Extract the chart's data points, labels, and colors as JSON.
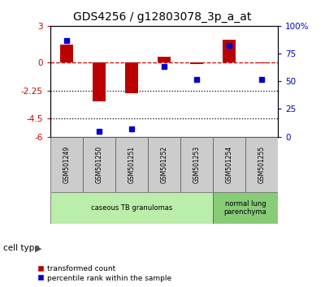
{
  "title": "GDS4256 / g12803078_3p_a_at",
  "samples": [
    "GSM501249",
    "GSM501250",
    "GSM501251",
    "GSM501252",
    "GSM501253",
    "GSM501254",
    "GSM501255"
  ],
  "red_values": [
    1.5,
    -3.1,
    -2.5,
    0.5,
    -0.1,
    1.85,
    -0.05
  ],
  "blue_values": [
    87,
    5,
    7,
    63,
    52,
    82,
    52
  ],
  "ylim_left": [
    -6,
    3
  ],
  "ylim_right": [
    0,
    100
  ],
  "yticks_left": [
    3,
    0,
    -2.25,
    -4.5,
    -6
  ],
  "ytick_labels_left": [
    "3",
    "0",
    "-2.25",
    "-4.5",
    "-6"
  ],
  "yticks_right": [
    100,
    75,
    50,
    25,
    0
  ],
  "ytick_labels_right": [
    "100%",
    "75",
    "50",
    "25",
    "0"
  ],
  "hlines": [
    0,
    -2.25,
    -4.5
  ],
  "hline_styles": [
    "dashed",
    "dotted",
    "dotted"
  ],
  "hline_colors": [
    "#cc0000",
    "#000000",
    "#000000"
  ],
  "cell_type_groups": [
    {
      "label": "caseous TB granulomas",
      "samples": [
        0,
        1,
        2,
        3,
        4
      ],
      "color": "#bbeeaa"
    },
    {
      "label": "normal lung\nparenchyma",
      "samples": [
        5,
        6
      ],
      "color": "#88cc77"
    }
  ],
  "cell_type_label": "cell type",
  "bar_color": "#bb0000",
  "marker_color": "#0000cc",
  "legend_red": "transformed count",
  "legend_blue": "percentile rank within the sample",
  "background_plot": "#ffffff",
  "title_fontsize": 10,
  "tick_fontsize": 7.5
}
